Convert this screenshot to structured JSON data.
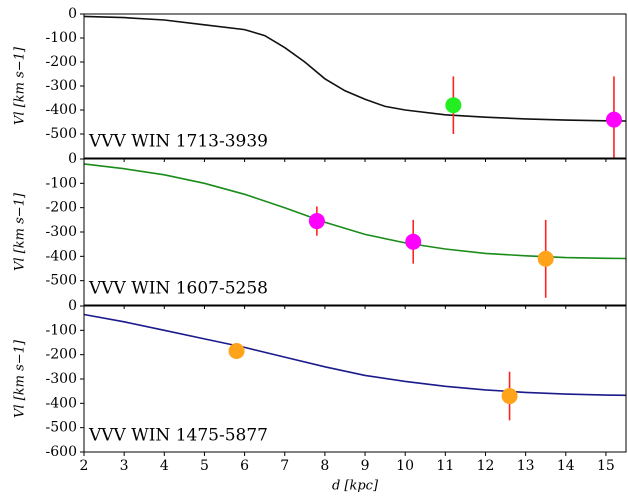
{
  "chart_data": [
    {
      "type": "line",
      "annotation": "VVV WIN 1713-3939",
      "ylabel": "Vl [km s−1]",
      "xlim": [
        2,
        15.5
      ],
      "ylim": [
        -600,
        0
      ],
      "yticks": [
        0,
        -100,
        -200,
        -300,
        -400,
        -500
      ],
      "curve": {
        "color": "#111111",
        "x": [
          2,
          3,
          4,
          5,
          6,
          6.5,
          7,
          7.5,
          8,
          8.5,
          9,
          9.5,
          10,
          11,
          12,
          13,
          14,
          15,
          15.5
        ],
        "values": [
          -10,
          -15,
          -25,
          -45,
          -65,
          -90,
          -140,
          -200,
          -270,
          -320,
          -355,
          -385,
          -400,
          -420,
          -430,
          -437,
          -442,
          -445,
          -446
        ]
      },
      "points": {
        "x": [
          11.2,
          15.2
        ],
        "values": [
          -380,
          -440
        ],
        "errors": [
          120,
          180
        ],
        "colors": [
          "#22ee22",
          "#ff00ff"
        ],
        "error_color": "#ff2222"
      }
    },
    {
      "type": "line",
      "annotation": "VVV WIN 1607-5258",
      "ylabel": "Vl [km s−1]",
      "xlim": [
        2,
        15.5
      ],
      "ylim": [
        -600,
        0
      ],
      "yticks": [
        0,
        -100,
        -200,
        -300,
        -400,
        -500
      ],
      "curve": {
        "color": "#1a8c1a",
        "x": [
          2,
          3,
          4,
          5,
          6,
          7,
          8,
          9,
          10,
          11,
          12,
          13,
          14,
          15,
          15.5
        ],
        "values": [
          -20,
          -40,
          -65,
          -100,
          -145,
          -200,
          -260,
          -310,
          -345,
          -370,
          -388,
          -398,
          -405,
          -408,
          -409
        ]
      },
      "points": {
        "x": [
          7.8,
          10.2,
          13.5
        ],
        "values": [
          -255,
          -340,
          -410
        ],
        "errors": [
          60,
          90,
          160
        ],
        "colors": [
          "#ff00ff",
          "#ff00ff",
          "#ffa31a"
        ],
        "error_color": "#ff2222"
      }
    },
    {
      "type": "line",
      "annotation": "VVV WIN 1475-5877",
      "ylabel": "Vl [km s−1]",
      "xlabel": "d [kpc]",
      "xlim": [
        2,
        15.5
      ],
      "xticks": [
        2,
        3,
        4,
        5,
        6,
        7,
        8,
        9,
        10,
        11,
        12,
        13,
        14,
        15
      ],
      "ylim": [
        -600,
        0
      ],
      "yticks": [
        0,
        -100,
        -200,
        -300,
        -400,
        -500,
        -600
      ],
      "curve": {
        "color": "#1a1a8c",
        "x": [
          2,
          3,
          4,
          5,
          6,
          7,
          8,
          9,
          10,
          11,
          12,
          13,
          14,
          15,
          15.5
        ],
        "values": [
          -35,
          -65,
          -100,
          -135,
          -170,
          -210,
          -250,
          -285,
          -310,
          -330,
          -345,
          -355,
          -362,
          -366,
          -367
        ]
      },
      "points": {
        "x": [
          5.8,
          12.6
        ],
        "values": [
          -185,
          -370
        ],
        "errors": [
          30,
          100
        ],
        "colors": [
          "#ffa31a",
          "#ffa31a"
        ],
        "error_color": "#ff2222"
      }
    }
  ]
}
